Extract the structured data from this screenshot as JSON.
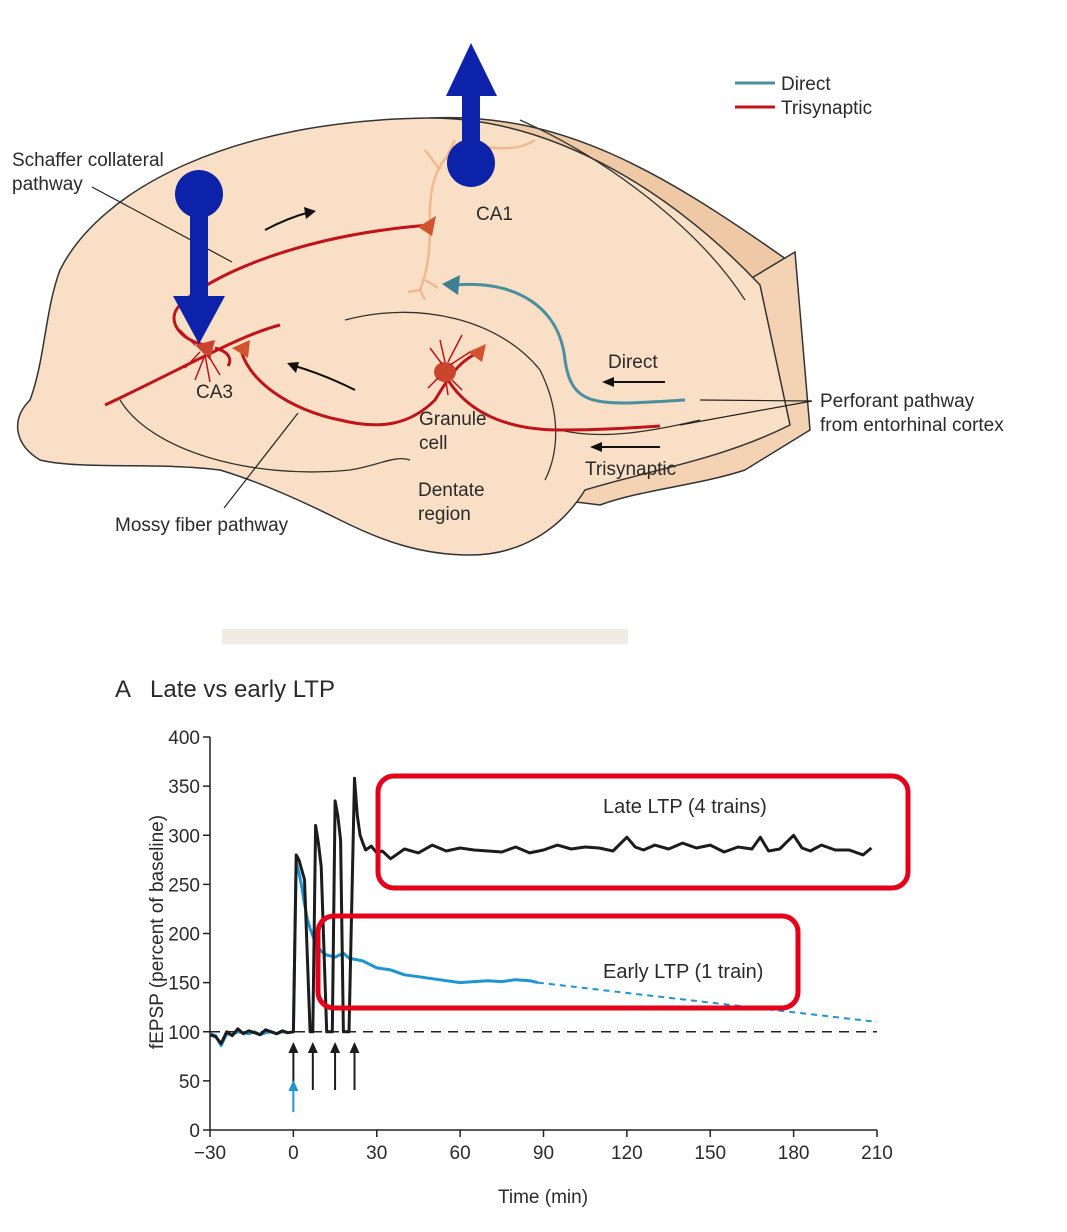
{
  "diagram": {
    "legend": [
      {
        "label": "Direct",
        "color": "#4a8fa0"
      },
      {
        "label": "Trisynaptic",
        "color": "#c0141b"
      }
    ],
    "labels": {
      "schaffer_line1": "Schaffer collateral",
      "schaffer_line2": "pathway",
      "ca1": "CA1",
      "ca3": "CA3",
      "direct": "Direct",
      "trisynaptic": "Trisynaptic",
      "granule_line1": "Granule",
      "granule_line2": "cell",
      "dentate_line1": "Dentate",
      "dentate_line2": "region",
      "mossy": "Mossy fiber pathway",
      "perforant_line1": "Perforant pathway",
      "perforant_line2": "from entorhinal cortex"
    },
    "colors": {
      "tissue": "#f8dfc6",
      "tissue_dark": "#efc9a6",
      "trisynaptic": "#c0141b",
      "direct": "#4a8fa0",
      "annotation_arrow": "#0c22a8",
      "neuron_ca1": "#f2b98e"
    }
  },
  "chart_data": {
    "type": "line",
    "panel_letter": "A",
    "title": "Late vs early LTP",
    "xlabel": "Time (min)",
    "ylabel": "fEPSP (percent of baseline)",
    "xlim": [
      -30,
      210
    ],
    "ylim": [
      0,
      400
    ],
    "x_ticks": [
      -30,
      0,
      30,
      60,
      90,
      120,
      150,
      180,
      210
    ],
    "y_ticks": [
      0,
      50,
      100,
      150,
      200,
      250,
      300,
      350,
      400
    ],
    "baseline": 100,
    "series": [
      {
        "name": "Late LTP (4 trains)",
        "color": "#1c1c1c",
        "x": [
          -30,
          -28,
          -26,
          -24,
          -22,
          -20,
          -18,
          -16,
          -14,
          -12,
          -10,
          -8,
          -6,
          -4,
          -2,
          0,
          1,
          2,
          4,
          6,
          7,
          8,
          9,
          10,
          12,
          14,
          15,
          16,
          17,
          18,
          20,
          22,
          23,
          24,
          25,
          26,
          28,
          30,
          32,
          35,
          40,
          45,
          50,
          55,
          60,
          65,
          70,
          75,
          80,
          85,
          90,
          95,
          100,
          105,
          110,
          115,
          120,
          123,
          126,
          130,
          135,
          140,
          145,
          150,
          155,
          160,
          165,
          168,
          171,
          175,
          180,
          183,
          186,
          190,
          195,
          200,
          205,
          208
        ],
        "values": [
          97,
          95,
          88,
          100,
          96,
          103,
          98,
          101,
          99,
          97,
          102,
          100,
          98,
          101,
          99,
          100,
          280,
          275,
          255,
          100,
          100,
          310,
          292,
          268,
          100,
          100,
          335,
          320,
          295,
          100,
          100,
          358,
          320,
          300,
          292,
          285,
          289,
          282,
          284,
          276,
          286,
          282,
          290,
          284,
          287,
          285,
          284,
          283,
          288,
          282,
          285,
          290,
          286,
          288,
          287,
          284,
          298,
          288,
          285,
          290,
          286,
          292,
          287,
          290,
          283,
          288,
          286,
          298,
          284,
          286,
          300,
          287,
          284,
          290,
          285,
          285,
          280,
          287
        ]
      },
      {
        "name": "Early LTP (1 train)",
        "color": "#1e94d2",
        "x": [
          -30,
          -28,
          -26,
          -24,
          -22,
          -20,
          -18,
          -16,
          -14,
          -12,
          -10,
          -8,
          -6,
          -4,
          -2,
          0,
          1,
          2,
          3,
          4,
          5,
          6,
          8,
          10,
          12,
          15,
          18,
          20,
          25,
          30,
          35,
          40,
          45,
          50,
          55,
          60,
          65,
          70,
          75,
          80,
          85,
          88
        ],
        "values": [
          98,
          96,
          86,
          98,
          97,
          100,
          99,
          98,
          100,
          97,
          99,
          100,
          98,
          100,
          99,
          100,
          272,
          262,
          248,
          230,
          215,
          205,
          190,
          182,
          178,
          176,
          180,
          175,
          172,
          165,
          163,
          158,
          156,
          154,
          152,
          150,
          151,
          152,
          151,
          153,
          152,
          150
        ],
        "extrapolated": {
          "x": [
            88,
            210
          ],
          "values": [
            150,
            110
          ]
        }
      }
    ],
    "stimulus_arrows": {
      "late_x": [
        0,
        7,
        15,
        22
      ],
      "early_x": [
        0
      ]
    }
  }
}
